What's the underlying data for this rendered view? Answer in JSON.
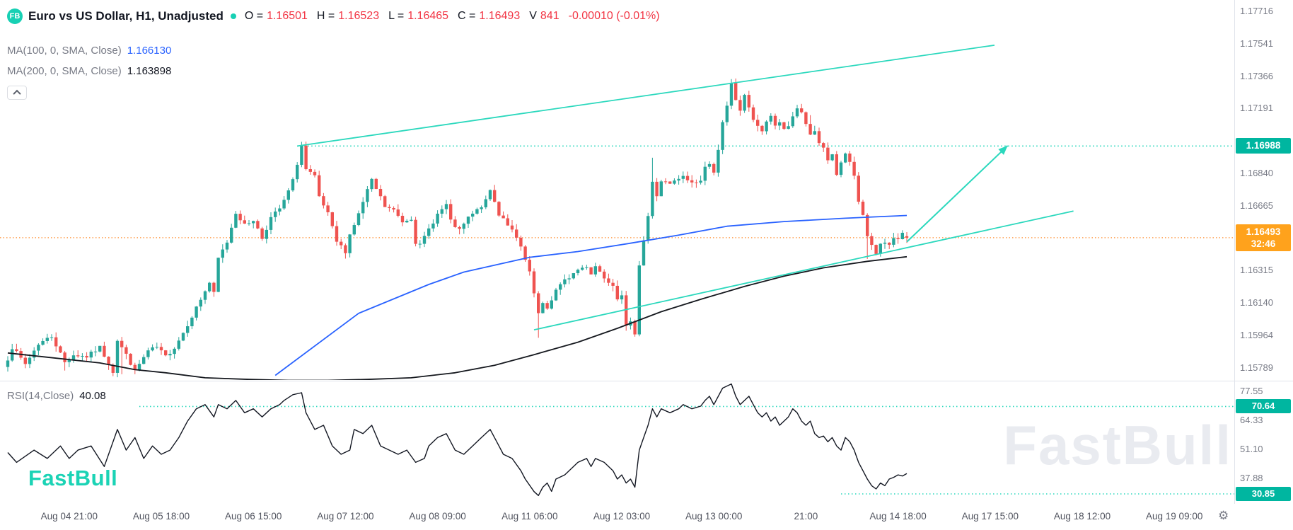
{
  "header": {
    "logo": "FB",
    "title": "Euro vs US Dollar, H1, Unadjusted",
    "ohlc": {
      "o_label": "O =",
      "o": "1.16501",
      "h_label": "H =",
      "h": "1.16523",
      "l_label": "L =",
      "l": "1.16465",
      "c_label": "C =",
      "c": "1.16493",
      "v_label": "V",
      "v": "841",
      "change": "-0.00010 (-0.01%)"
    },
    "ma100": {
      "label": "MA(100, 0, SMA, Close)",
      "value": "1.166130"
    },
    "ma200": {
      "label": "MA(200, 0, SMA, Close)",
      "value": "1.163898"
    }
  },
  "rsi": {
    "label": "RSI(14,Close)",
    "value": "40.08"
  },
  "watermark": "FastBull",
  "logo_text": "FastBull",
  "icons": {
    "gear": "⚙"
  },
  "price_axis": {
    "ticks": [
      "1.17716",
      "1.17541",
      "1.17366",
      "1.17191",
      "1.16840",
      "1.16665",
      "1.16315",
      "1.16140",
      "1.15964",
      "1.15789"
    ],
    "resistance_badge": "1.16988",
    "last_price_badge": "1.16493",
    "countdown": "32:46"
  },
  "rsi_axis": {
    "ticks": [
      "77.55",
      "64.33",
      "51.10",
      "37.88"
    ],
    "upper_badge": "70.64",
    "lower_badge": "30.85"
  },
  "time_axis": {
    "labels": [
      "Aug 04 21:00",
      "Aug 05 18:00",
      "Aug 06 15:00",
      "Aug 07 12:00",
      "Aug 08 09:00",
      "Aug 11 06:00",
      "Aug 12 03:00",
      "Aug 13 00:00",
      "21:00",
      "Aug 14 18:00",
      "Aug 17 15:00",
      "Aug 18 12:00",
      "Aug 19 09:00"
    ]
  },
  "colors": {
    "up": "#26a69a",
    "down": "#ef5350",
    "ma100": "#2962ff",
    "ma200": "#15181e",
    "teal": "#2bd8bd",
    "teal_badge": "#00b6a0",
    "orange_badge": "#ffa21c",
    "price_line": "#ff9e4d",
    "rsi_line": "#131722",
    "text_dark": "#131722",
    "text_gray": "#787b86",
    "divider": "#e0e3eb",
    "watermark": "#e9ebf0",
    "brand": "#1bd3b5"
  },
  "chart_data": {
    "type": "candlestick",
    "symbol": "Euro vs US Dollar",
    "interval": "H1",
    "last": {
      "open": 1.16501,
      "high": 1.16523,
      "low": 1.16465,
      "close": 1.16493,
      "volume": 841,
      "change": -0.0001,
      "change_pct": -0.01
    },
    "indicators": [
      {
        "name": "MA",
        "params": "100, 0, SMA, Close",
        "value": 1.16613
      },
      {
        "name": "MA",
        "params": "200, 0, SMA, Close",
        "value": 1.163898
      },
      {
        "name": "RSI",
        "params": "14,Close",
        "value": 40.08
      }
    ],
    "price_range": [
      1.15789,
      1.17716
    ],
    "rsi_range": [
      30.85,
      77.55
    ],
    "candle_count": 206,
    "time_ticks": {
      "first_index": 14,
      "step": 21
    },
    "levels": {
      "resistance": 1.16988,
      "resistance_start_i": 66,
      "last_price": 1.16493,
      "rsi_upper": 70.64,
      "rsi_upper_start_i": 30,
      "rsi_lower": 30.85,
      "rsi_lower_start_i": 190
    },
    "trendlines": [
      {
        "from": [
          66,
          1.16988
        ],
        "to": [
          225,
          1.17533
        ]
      },
      {
        "from": [
          120,
          1.15995
        ],
        "to": [
          243,
          1.16637
        ]
      }
    ],
    "arrow": {
      "from": [
        205,
        1.1647
      ],
      "to": [
        228,
        1.1699
      ]
    },
    "close_path": [
      [
        0,
        1.1584
      ],
      [
        1,
        1.159
      ],
      [
        4,
        1.1581
      ],
      [
        7,
        1.1592
      ],
      [
        10,
        1.1596
      ],
      [
        13,
        1.1582
      ],
      [
        15,
        1.1586
      ],
      [
        18,
        1.1585
      ],
      [
        21,
        1.159
      ],
      [
        24,
        1.1577
      ],
      [
        25,
        1.1594
      ],
      [
        27,
        1.1586
      ],
      [
        29,
        1.1577
      ],
      [
        30,
        1.1581
      ],
      [
        32,
        1.1588
      ],
      [
        34,
        1.159
      ],
      [
        36,
        1.1585
      ],
      [
        38,
        1.159
      ],
      [
        40,
        1.1598
      ],
      [
        42,
        1.1607
      ],
      [
        44,
        1.1616
      ],
      [
        46,
        1.1625
      ],
      [
        47,
        1.1619
      ],
      [
        48,
        1.1638
      ],
      [
        50,
        1.1647
      ],
      [
        52,
        1.1663
      ],
      [
        54,
        1.1656
      ],
      [
        56,
        1.1659
      ],
      [
        58,
        1.1649
      ],
      [
        60,
        1.166
      ],
      [
        62,
        1.1665
      ],
      [
        63,
        1.1669
      ],
      [
        65,
        1.168
      ],
      [
        67,
        1.1699
      ],
      [
        68,
        1.1686
      ],
      [
        70,
        1.1682
      ],
      [
        71,
        1.1671
      ],
      [
        73,
        1.1662
      ],
      [
        75,
        1.1647
      ],
      [
        77,
        1.1642
      ],
      [
        78,
        1.1651
      ],
      [
        80,
        1.1662
      ],
      [
        82,
        1.1675
      ],
      [
        83,
        1.168
      ],
      [
        85,
        1.1671
      ],
      [
        86,
        1.1666
      ],
      [
        88,
        1.1664
      ],
      [
        90,
        1.1658
      ],
      [
        92,
        1.166
      ],
      [
        93,
        1.1647
      ],
      [
        94,
        1.1645
      ],
      [
        96,
        1.1654
      ],
      [
        98,
        1.1662
      ],
      [
        100,
        1.1667
      ],
      [
        101,
        1.1658
      ],
      [
        103,
        1.1653
      ],
      [
        105,
        1.166
      ],
      [
        107,
        1.1664
      ],
      [
        109,
        1.1669
      ],
      [
        110,
        1.1675
      ],
      [
        112,
        1.1662
      ],
      [
        113,
        1.166
      ],
      [
        115,
        1.1653
      ],
      [
        117,
        1.1644
      ],
      [
        118,
        1.1637
      ],
      [
        119,
        1.163
      ],
      [
        120,
        1.1619
      ],
      [
        121,
        1.1608
      ],
      [
        122,
        1.1613
      ],
      [
        123,
        1.1611
      ],
      [
        125,
        1.1621
      ],
      [
        127,
        1.1626
      ],
      [
        128,
        1.1628
      ],
      [
        130,
        1.1632
      ],
      [
        132,
        1.1634
      ],
      [
        133,
        1.163
      ],
      [
        134,
        1.1634
      ],
      [
        136,
        1.1628
      ],
      [
        138,
        1.1624
      ],
      [
        139,
        1.1617
      ],
      [
        140,
        1.1619
      ],
      [
        141,
        1.1601
      ],
      [
        142,
        1.1603
      ],
      [
        143,
        1.1598
      ],
      [
        144,
        1.1635
      ],
      [
        145,
        1.1648
      ],
      [
        146,
        1.1661
      ],
      [
        147,
        1.1679
      ],
      [
        148,
        1.1672
      ],
      [
        149,
        1.168
      ],
      [
        151,
        1.1678
      ],
      [
        153,
        1.1681
      ],
      [
        154,
        1.1682
      ],
      [
        156,
        1.1679
      ],
      [
        158,
        1.168
      ],
      [
        159,
        1.1687
      ],
      [
        160,
        1.169
      ],
      [
        161,
        1.1685
      ],
      [
        162,
        1.1696
      ],
      [
        163,
        1.1711
      ],
      [
        164,
        1.172
      ],
      [
        165,
        1.1733
      ],
      [
        166,
        1.1724
      ],
      [
        167,
        1.1717
      ],
      [
        168,
        1.1727
      ],
      [
        169,
        1.172
      ],
      [
        170,
        1.1713
      ],
      [
        171,
        1.1709
      ],
      [
        172,
        1.1707
      ],
      [
        173,
        1.1711
      ],
      [
        174,
        1.1715
      ],
      [
        175,
        1.171
      ],
      [
        176,
        1.1712
      ],
      [
        177,
        1.1708
      ],
      [
        178,
        1.171
      ],
      [
        179,
        1.1714
      ],
      [
        180,
        1.1719
      ],
      [
        181,
        1.1716
      ],
      [
        182,
        1.171
      ],
      [
        183,
        1.1705
      ],
      [
        184,
        1.1707
      ],
      [
        185,
        1.17
      ],
      [
        186,
        1.1697
      ],
      [
        187,
        1.1691
      ],
      [
        188,
        1.1694
      ],
      [
        189,
        1.1684
      ],
      [
        191,
        1.1695
      ],
      [
        192,
        1.169
      ],
      [
        193,
        1.1682
      ],
      [
        194,
        1.1669
      ],
      [
        195,
        1.1662
      ],
      [
        196,
        1.1651
      ],
      [
        197,
        1.1645
      ],
      [
        198,
        1.164
      ],
      [
        199,
        1.1645
      ],
      [
        200,
        1.1647
      ],
      [
        201,
        1.1646
      ],
      [
        202,
        1.165
      ],
      [
        203,
        1.1648
      ],
      [
        204,
        1.1651
      ],
      [
        205,
        1.16493
      ]
    ],
    "wick_overrides": [
      {
        "i": 13,
        "l": 1.15775
      },
      {
        "i": 26,
        "l": 1.15755
      },
      {
        "i": 67,
        "h": 1.16995
      },
      {
        "i": 121,
        "l": 1.15952
      },
      {
        "i": 143,
        "l": 1.15958
      },
      {
        "i": 147,
        "h": 1.16925
      },
      {
        "i": 165,
        "h": 1.17338
      },
      {
        "i": 183,
        "h": 1.17155
      },
      {
        "i": 196,
        "l": 1.16378
      }
    ],
    "ma100_path": [
      [
        61,
        1.15749
      ],
      [
        80,
        1.16084
      ],
      [
        96,
        1.1624
      ],
      [
        104,
        1.16307
      ],
      [
        119,
        1.16387
      ],
      [
        130,
        1.16418
      ],
      [
        142,
        1.16463
      ],
      [
        153,
        1.16507
      ],
      [
        164,
        1.16555
      ],
      [
        177,
        1.1658
      ],
      [
        191,
        1.16598
      ],
      [
        199,
        1.16607
      ],
      [
        205,
        1.16613
      ]
    ],
    "ma200_path": [
      [
        0,
        1.1587
      ],
      [
        9,
        1.15847
      ],
      [
        21,
        1.15816
      ],
      [
        29,
        1.1578
      ],
      [
        36,
        1.15763
      ],
      [
        45,
        1.15736
      ],
      [
        55,
        1.15727
      ],
      [
        64,
        1.15722
      ],
      [
        73,
        1.15722
      ],
      [
        82,
        1.15727
      ],
      [
        92,
        1.15736
      ],
      [
        102,
        1.15763
      ],
      [
        111,
        1.15803
      ],
      [
        120,
        1.15861
      ],
      [
        130,
        1.15928
      ],
      [
        139,
        1.16003
      ],
      [
        149,
        1.16093
      ],
      [
        158,
        1.1616
      ],
      [
        168,
        1.1623
      ],
      [
        177,
        1.16285
      ],
      [
        186,
        1.1633
      ],
      [
        196,
        1.16365
      ],
      [
        205,
        1.1639
      ]
    ],
    "rsi_path": [
      [
        0,
        49.7
      ],
      [
        2,
        45.2
      ],
      [
        6,
        50.8
      ],
      [
        9,
        47
      ],
      [
        12,
        52.7
      ],
      [
        14,
        47
      ],
      [
        16,
        50.8
      ],
      [
        19,
        52.7
      ],
      [
        22,
        43.3
      ],
      [
        25,
        60.2
      ],
      [
        27,
        50.8
      ],
      [
        29,
        56.5
      ],
      [
        31,
        47
      ],
      [
        33,
        52.7
      ],
      [
        35,
        48.9
      ],
      [
        37,
        50.8
      ],
      [
        39,
        56.5
      ],
      [
        41,
        64
      ],
      [
        43,
        69.6
      ],
      [
        45,
        71.5
      ],
      [
        47,
        65.9
      ],
      [
        48,
        71.5
      ],
      [
        50,
        69.6
      ],
      [
        52,
        73.4
      ],
      [
        54,
        67.8
      ],
      [
        56,
        69.6
      ],
      [
        58,
        65.9
      ],
      [
        60,
        69.6
      ],
      [
        62,
        71.5
      ],
      [
        63,
        73.4
      ],
      [
        65,
        76
      ],
      [
        67,
        76.9
      ],
      [
        68,
        67.8
      ],
      [
        70,
        60.2
      ],
      [
        72,
        62.1
      ],
      [
        74,
        52.7
      ],
      [
        76,
        48.9
      ],
      [
        78,
        50.8
      ],
      [
        79,
        60.2
      ],
      [
        81,
        58.3
      ],
      [
        83,
        62.1
      ],
      [
        85,
        52.7
      ],
      [
        87,
        50.8
      ],
      [
        89,
        48.9
      ],
      [
        91,
        50.8
      ],
      [
        93,
        45.2
      ],
      [
        95,
        47
      ],
      [
        96,
        52.7
      ],
      [
        98,
        56.5
      ],
      [
        100,
        58.3
      ],
      [
        102,
        50.8
      ],
      [
        104,
        48.9
      ],
      [
        106,
        52.7
      ],
      [
        108,
        56.5
      ],
      [
        110,
        60.2
      ],
      [
        112,
        52.7
      ],
      [
        113,
        48.9
      ],
      [
        115,
        47
      ],
      [
        117,
        41.4
      ],
      [
        118,
        37.6
      ],
      [
        120,
        31.9
      ],
      [
        121,
        30.1
      ],
      [
        122,
        33.9
      ],
      [
        123,
        35.8
      ],
      [
        124,
        32
      ],
      [
        125,
        37.6
      ],
      [
        127,
        39.5
      ],
      [
        128,
        41.4
      ],
      [
        130,
        45.2
      ],
      [
        132,
        47
      ],
      [
        133,
        43.3
      ],
      [
        134,
        47
      ],
      [
        136,
        45.2
      ],
      [
        138,
        41.4
      ],
      [
        139,
        37.6
      ],
      [
        140,
        39.5
      ],
      [
        141,
        35.8
      ],
      [
        142,
        37.6
      ],
      [
        143,
        33.9
      ],
      [
        144,
        50.8
      ],
      [
        145,
        56.5
      ],
      [
        146,
        62.1
      ],
      [
        147,
        69.6
      ],
      [
        148,
        65.9
      ],
      [
        149,
        69.6
      ],
      [
        151,
        67.8
      ],
      [
        153,
        69.6
      ],
      [
        154,
        71.5
      ],
      [
        156,
        69.6
      ],
      [
        158,
        70.8
      ],
      [
        159,
        73.4
      ],
      [
        160,
        75.3
      ],
      [
        161,
        71.5
      ],
      [
        163,
        79
      ],
      [
        165,
        80.9
      ],
      [
        166,
        75.3
      ],
      [
        167,
        71.5
      ],
      [
        168,
        73.4
      ],
      [
        169,
        75.3
      ],
      [
        170,
        71.5
      ],
      [
        171,
        67.8
      ],
      [
        172,
        65.9
      ],
      [
        173,
        67.8
      ],
      [
        174,
        64
      ],
      [
        175,
        65.9
      ],
      [
        176,
        62.1
      ],
      [
        177,
        64
      ],
      [
        178,
        65.9
      ],
      [
        179,
        69.6
      ],
      [
        180,
        67.8
      ],
      [
        181,
        64
      ],
      [
        182,
        62.1
      ],
      [
        183,
        64
      ],
      [
        184,
        58.3
      ],
      [
        185,
        56.5
      ],
      [
        186,
        57.2
      ],
      [
        187,
        54.6
      ],
      [
        188,
        56.5
      ],
      [
        189,
        52.7
      ],
      [
        190,
        50.8
      ],
      [
        191,
        56.5
      ],
      [
        192,
        54.6
      ],
      [
        193,
        50.8
      ],
      [
        194,
        45.2
      ],
      [
        195,
        41.4
      ],
      [
        196,
        37.6
      ],
      [
        197,
        34.6
      ],
      [
        198,
        33.1
      ],
      [
        199,
        35.8
      ],
      [
        200,
        34.6
      ],
      [
        201,
        37.6
      ],
      [
        202,
        38.4
      ],
      [
        203,
        39.5
      ],
      [
        204,
        39
      ],
      [
        205,
        40.08
      ]
    ]
  }
}
